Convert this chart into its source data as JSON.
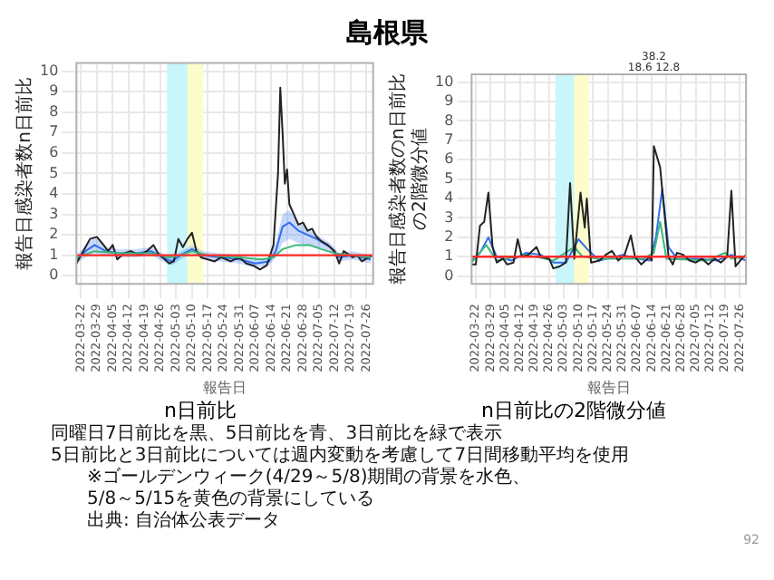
{
  "chart_data": [
    {
      "type": "other",
      "title": "島根県"
    },
    {
      "type": "line",
      "ylabel": "報告日感染者数n日前比",
      "xlabel": "報告日",
      "xlim": [
        "2022-03-20",
        "2022-07-29"
      ],
      "xticks": [
        "2022-03-22",
        "2022-03-29",
        "2022-04-05",
        "2022-04-12",
        "2022-04-19",
        "2022-04-26",
        "2022-05-03",
        "2022-05-10",
        "2022-05-17",
        "2022-05-24",
        "2022-05-31",
        "2022-06-07",
        "2022-06-14",
        "2022-06-21",
        "2022-06-28",
        "2022-07-05",
        "2022-07-12",
        "2022-07-19",
        "2022-07-26"
      ],
      "ylim": [
        -0.4,
        10.4
      ],
      "yticks": [
        0,
        1,
        2,
        3,
        4,
        5,
        6,
        7,
        8,
        9,
        10
      ],
      "grid": true,
      "marker": "none",
      "ref_lines": [
        {
          "axis": "y",
          "value": 1,
          "color": "#ff2a2a"
        }
      ],
      "bands": [
        {
          "axis": "x",
          "from": "2022-04-29",
          "to": "2022-05-08",
          "color": "#c8f6fa"
        },
        {
          "axis": "x",
          "from": "2022-05-08",
          "to": "2022-05-15",
          "color": "#fcfccc"
        }
      ],
      "annotations": [
        "n日前比"
      ],
      "series": [
        {
          "color": "#3ab87a",
          "x": [
            "2022-03-20",
            "2022-03-28",
            "2022-04-08",
            "2022-04-22",
            "2022-04-30",
            "2022-05-05",
            "2022-05-10",
            "2022-05-17",
            "2022-05-31",
            "2022-06-10",
            "2022-06-15",
            "2022-06-19",
            "2022-06-25",
            "2022-07-01",
            "2022-07-06",
            "2022-07-12",
            "2022-07-20",
            "2022-07-28"
          ],
          "values": [
            0.9,
            1.2,
            1.1,
            1.1,
            0.9,
            1.0,
            1.2,
            1.0,
            0.9,
            0.8,
            0.9,
            1.3,
            1.5,
            1.5,
            1.3,
            1.1,
            1.0,
            0.9
          ]
        },
        {
          "color": "#222222",
          "x": [
            "2022-03-20",
            "2022-03-23",
            "2022-03-26",
            "2022-03-29",
            "2022-04-01",
            "2022-04-03",
            "2022-04-05",
            "2022-04-07",
            "2022-04-10",
            "2022-04-13",
            "2022-04-17",
            "2022-04-20",
            "2022-04-23",
            "2022-04-25",
            "2022-04-28",
            "2022-04-30",
            "2022-05-02",
            "2022-05-04",
            "2022-05-06",
            "2022-05-08",
            "2022-05-10",
            "2022-05-12",
            "2022-05-14",
            "2022-05-17",
            "2022-05-20",
            "2022-05-23",
            "2022-05-27",
            "2022-05-31",
            "2022-06-03",
            "2022-06-06",
            "2022-06-09",
            "2022-06-12",
            "2022-06-15",
            "2022-06-17",
            "2022-06-18",
            "2022-06-19",
            "2022-06-20",
            "2022-06-21",
            "2022-06-22",
            "2022-06-24",
            "2022-06-26",
            "2022-06-28",
            "2022-06-30",
            "2022-07-02",
            "2022-07-04",
            "2022-07-06",
            "2022-07-09",
            "2022-07-12",
            "2022-07-14",
            "2022-07-16",
            "2022-07-20",
            "2022-07-22",
            "2022-07-24",
            "2022-07-27",
            "2022-07-29"
          ],
          "values": [
            0.6,
            1.2,
            1.8,
            1.9,
            1.5,
            1.2,
            1.5,
            0.8,
            1.1,
            1.2,
            1.0,
            1.2,
            1.5,
            1.1,
            0.8,
            0.6,
            0.7,
            1.8,
            1.4,
            1.8,
            2.1,
            1.2,
            0.9,
            0.8,
            0.7,
            0.9,
            0.7,
            0.9,
            0.6,
            0.5,
            0.3,
            0.5,
            1.5,
            5.0,
            9.2,
            7.0,
            4.5,
            5.2,
            3.5,
            3.0,
            2.5,
            2.6,
            2.2,
            2.3,
            1.9,
            1.7,
            1.5,
            1.2,
            0.6,
            1.2,
            0.9,
            1.0,
            0.7,
            0.9,
            1.0
          ]
        },
        {
          "color": "#2f6ff0",
          "x": [
            "2022-03-20",
            "2022-03-24",
            "2022-03-28",
            "2022-04-02",
            "2022-04-08",
            "2022-04-15",
            "2022-04-22",
            "2022-04-27",
            "2022-05-01",
            "2022-05-05",
            "2022-05-10",
            "2022-05-15",
            "2022-05-22",
            "2022-05-31",
            "2022-06-07",
            "2022-06-13",
            "2022-06-16",
            "2022-06-19",
            "2022-06-22",
            "2022-06-26",
            "2022-06-30",
            "2022-07-04",
            "2022-07-10",
            "2022-07-14",
            "2022-07-20",
            "2022-07-28"
          ],
          "values": [
            0.8,
            1.2,
            1.5,
            1.2,
            1.1,
            1.1,
            1.2,
            0.9,
            0.7,
            1.0,
            1.3,
            1.0,
            0.9,
            0.8,
            0.6,
            0.7,
            1.2,
            2.4,
            2.6,
            2.2,
            2.0,
            1.8,
            1.4,
            0.9,
            1.0,
            0.8
          ],
          "upper": [
            1.0,
            1.5,
            1.9,
            1.4,
            1.3,
            1.3,
            1.4,
            1.1,
            0.9,
            1.2,
            1.5,
            1.2,
            1.1,
            1.0,
            0.8,
            0.9,
            1.6,
            3.0,
            3.2,
            2.6,
            2.3,
            2.0,
            1.6,
            1.1,
            1.2,
            1.0
          ],
          "lower": [
            0.6,
            0.9,
            1.1,
            1.0,
            0.9,
            0.9,
            1.0,
            0.7,
            0.5,
            0.8,
            1.1,
            0.8,
            0.7,
            0.6,
            0.4,
            0.5,
            0.9,
            1.6,
            1.8,
            1.6,
            1.5,
            1.4,
            1.2,
            0.7,
            0.8,
            0.6
          ]
        }
      ]
    },
    {
      "type": "line",
      "ylabel": "報告日感染者数のn日前比の2階微分値",
      "xlabel": "報告日",
      "xlim": [
        "2022-03-20",
        "2022-07-29"
      ],
      "xticks": [
        "2022-03-22",
        "2022-03-29",
        "2022-04-05",
        "2022-04-12",
        "2022-04-19",
        "2022-04-26",
        "2022-05-03",
        "2022-05-10",
        "2022-05-17",
        "2022-05-24",
        "2022-05-31",
        "2022-06-07",
        "2022-06-14",
        "2022-06-21",
        "2022-06-28",
        "2022-07-05",
        "2022-07-12",
        "2022-07-19",
        "2022-07-26"
      ],
      "ylim": [
        -0.4,
        10.4
      ],
      "yticks": [
        0,
        1,
        2,
        3,
        4,
        5,
        6,
        7,
        8,
        9,
        10
      ],
      "grid": true,
      "marker": "none",
      "ref_lines": [
        {
          "axis": "y",
          "value": 1,
          "color": "#ff2a2a"
        }
      ],
      "bands": [
        {
          "axis": "x",
          "from": "2022-04-29",
          "to": "2022-05-08",
          "color": "#c8f6fa"
        },
        {
          "axis": "x",
          "from": "2022-05-08",
          "to": "2022-05-15",
          "color": "#fcfccc"
        }
      ],
      "annotations": [
        "n日前比の2階微分値",
        "38.2",
        "18.6 12.8"
      ],
      "series": [
        {
          "color": "#222222",
          "x": [
            "2022-03-20",
            "2022-03-22",
            "2022-03-24",
            "2022-03-26",
            "2022-03-28",
            "2022-03-30",
            "2022-04-01",
            "2022-04-04",
            "2022-04-06",
            "2022-04-09",
            "2022-04-11",
            "2022-04-13",
            "2022-04-16",
            "2022-04-20",
            "2022-04-22",
            "2022-04-26",
            "2022-04-28",
            "2022-05-01",
            "2022-05-04",
            "2022-05-06",
            "2022-05-08",
            "2022-05-11",
            "2022-05-13",
            "2022-05-14",
            "2022-05-16",
            "2022-05-20",
            "2022-05-23",
            "2022-05-26",
            "2022-05-29",
            "2022-06-01",
            "2022-06-04",
            "2022-06-06",
            "2022-06-09",
            "2022-06-13",
            "2022-06-14",
            "2022-06-15",
            "2022-06-18",
            "2022-06-22",
            "2022-06-24",
            "2022-06-26",
            "2022-06-29",
            "2022-07-02",
            "2022-07-05",
            "2022-07-08",
            "2022-07-11",
            "2022-07-14",
            "2022-07-17",
            "2022-07-20",
            "2022-07-22",
            "2022-07-24",
            "2022-07-27",
            "2022-07-29"
          ],
          "values": [
            0.6,
            0.6,
            2.6,
            2.8,
            4.3,
            1.5,
            0.7,
            0.9,
            0.6,
            0.7,
            1.9,
            1.0,
            1.1,
            1.5,
            1.0,
            0.9,
            0.4,
            0.5,
            0.7,
            4.8,
            0.9,
            4.3,
            2.5,
            4.0,
            0.7,
            0.8,
            1.1,
            1.3,
            0.8,
            1.1,
            2.1,
            1.0,
            0.6,
            1.0,
            0.8,
            6.7,
            5.6,
            1.0,
            0.6,
            1.2,
            1.1,
            0.8,
            0.7,
            0.9,
            0.6,
            0.9,
            0.7,
            1.0,
            4.4,
            0.5,
            0.9,
            1.1
          ]
        },
        {
          "color": "#3ab87a",
          "x": [
            "2022-03-20",
            "2022-03-27",
            "2022-04-01",
            "2022-04-15",
            "2022-04-28",
            "2022-05-08",
            "2022-05-12",
            "2022-05-20",
            "2022-06-10",
            "2022-06-15",
            "2022-06-18",
            "2022-06-21",
            "2022-07-10",
            "2022-07-19",
            "2022-07-22",
            "2022-07-29"
          ],
          "values": [
            0.7,
            1.6,
            0.8,
            1.1,
            0.8,
            1.5,
            1.0,
            0.9,
            0.9,
            1.2,
            2.8,
            0.9,
            0.8,
            1.2,
            0.9,
            1.0
          ]
        },
        {
          "color": "#2f6ff0",
          "x": [
            "2022-03-20",
            "2022-03-24",
            "2022-03-28",
            "2022-04-01",
            "2022-04-08",
            "2022-04-15",
            "2022-04-22",
            "2022-04-28",
            "2022-05-04",
            "2022-05-10",
            "2022-05-15",
            "2022-05-20",
            "2022-05-31",
            "2022-06-07",
            "2022-06-13",
            "2022-06-16",
            "2022-06-19",
            "2022-06-22",
            "2022-06-26",
            "2022-07-06",
            "2022-07-15",
            "2022-07-22",
            "2022-07-29"
          ],
          "values": [
            0.8,
            1.2,
            2.0,
            1.0,
            0.8,
            1.2,
            1.1,
            0.7,
            0.7,
            1.9,
            1.3,
            0.8,
            1.1,
            0.9,
            0.8,
            2.0,
            4.5,
            1.5,
            0.9,
            0.9,
            0.8,
            1.1,
            0.8
          ]
        }
      ]
    },
    {
      "type": "other",
      "annotations": [
        "同曜日7日前比を黒、5日前比を青、3日前比を緑で表示",
        "5日前比と3日前比については週内変動を考慮して7日間移動平均を使用",
        "※ゴールデンウィーク(4/29～5/8)期間の背景を水色、",
        "5/8～5/15を黄色の背景にしている",
        "出典: 自治体公表データ",
        "92"
      ]
    }
  ]
}
